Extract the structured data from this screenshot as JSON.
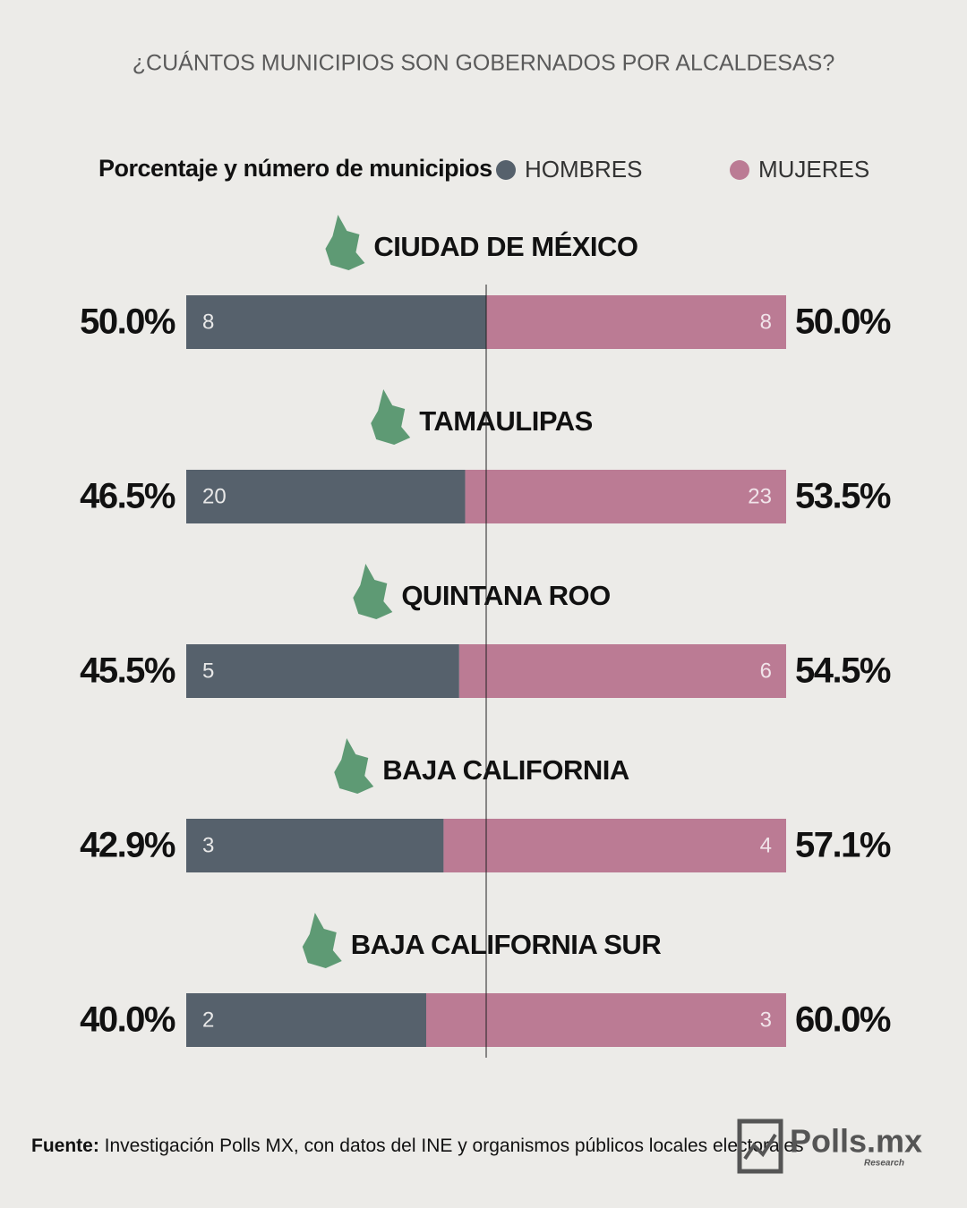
{
  "chart_data": {
    "type": "stacked-bar-100",
    "title": "¿CUÁNTOS MUNICIPIOS SON GOBERNADOS POR ALCALDESAS?",
    "subtitle": "Porcentaje y número de municipios",
    "categories": [
      "CIUDAD DE MÉXICO",
      "TAMAULIPAS",
      "QUINTANA ROO",
      "BAJA CALIFORNIA",
      "BAJA CALIFORNIA SUR"
    ],
    "series": [
      {
        "name": "HOMBRES",
        "color": "#56616c",
        "values": [
          50.0,
          46.5,
          45.5,
          42.9,
          40.0
        ],
        "value_labels": [
          "50.0%",
          "46.5%",
          "45.5%",
          "42.9%",
          "40.0%"
        ],
        "counts": [
          8,
          20,
          5,
          3,
          2
        ]
      },
      {
        "name": "MUJERES",
        "color": "#bb7b94",
        "values": [
          50.0,
          53.5,
          54.5,
          57.1,
          60.0
        ],
        "value_labels": [
          "50.0%",
          "53.5%",
          "54.5%",
          "57.1%",
          "60.0%"
        ],
        "counts": [
          8,
          23,
          6,
          4,
          3
        ]
      }
    ],
    "icon_color": "#5e9a74"
  },
  "footer": {
    "source_label": "Fuente:",
    "source": "Investigación Polls MX, con datos del INE y organismos públicos locales electorales",
    "brand": "Polls.mx",
    "brand_sub": "Research"
  }
}
